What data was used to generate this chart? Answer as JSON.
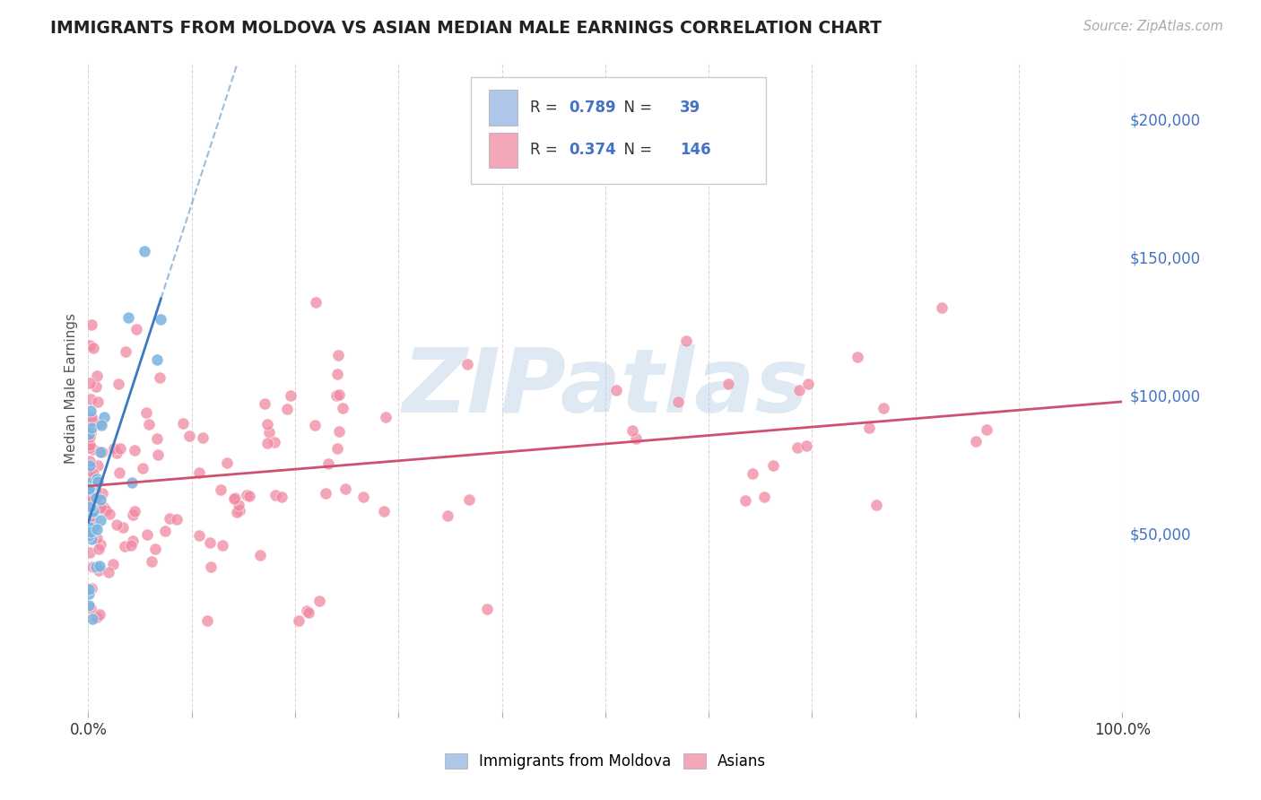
{
  "title": "IMMIGRANTS FROM MOLDOVA VS ASIAN MEDIAN MALE EARNINGS CORRELATION CHART",
  "source_text": "Source: ZipAtlas.com",
  "ylabel": "Median Male Earnings",
  "xlim": [
    0,
    1.0
  ],
  "ylim": [
    -15000,
    220000
  ],
  "ytick_values": [
    0,
    50000,
    100000,
    150000,
    200000
  ],
  "ytick_labels": [
    "",
    "$50,000",
    "$100,000",
    "$150,000",
    "$200,000"
  ],
  "legend_entry1": {
    "label": "Immigrants from Moldova",
    "color": "#aec6e8",
    "R": "0.789",
    "N": "39"
  },
  "legend_entry2": {
    "label": "Asians",
    "color": "#f4a7b9",
    "R": "0.374",
    "N": "146"
  },
  "watermark": "ZIPatlas",
  "background_color": "#ffffff",
  "grid_color": "#d0d0d0",
  "moldova_scatter_color": "#7ab3e0",
  "moldova_line_color": "#3a7bbf",
  "asians_scatter_color": "#f088a0",
  "asians_line_color": "#d05070",
  "title_color": "#222222",
  "source_color": "#aaaaaa",
  "axis_label_color": "#555555",
  "right_tick_color": "#4472c4"
}
